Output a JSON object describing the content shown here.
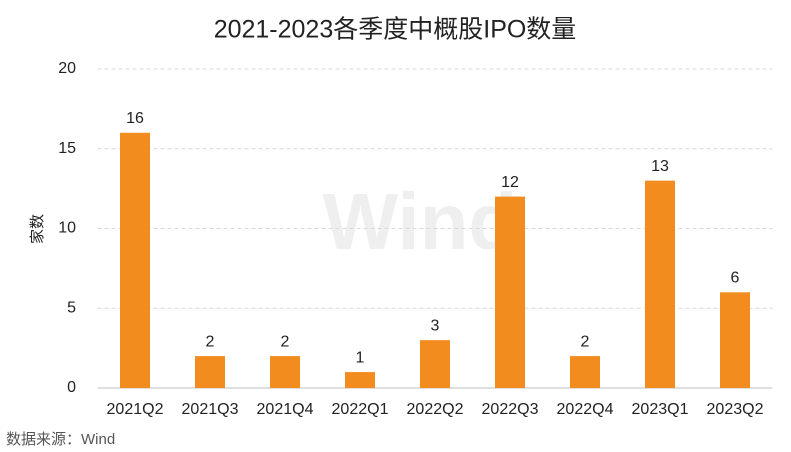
{
  "chart_data": {
    "type": "bar",
    "title": "2021-2023各季度中概股IPO数量",
    "y_label": "家数",
    "source": "数据来源：Wind",
    "watermark": "Wind",
    "categories": [
      "2021Q2",
      "2021Q3",
      "2021Q4",
      "2022Q1",
      "2022Q2",
      "2022Q3",
      "2022Q4",
      "2023Q1",
      "2023Q2"
    ],
    "values": [
      16,
      2,
      2,
      1,
      3,
      12,
      2,
      13,
      6
    ],
    "color": "#f28c1e",
    "ylim": [
      0,
      20
    ],
    "yticks": [
      0,
      5,
      10,
      15,
      20
    ],
    "grid": true
  }
}
